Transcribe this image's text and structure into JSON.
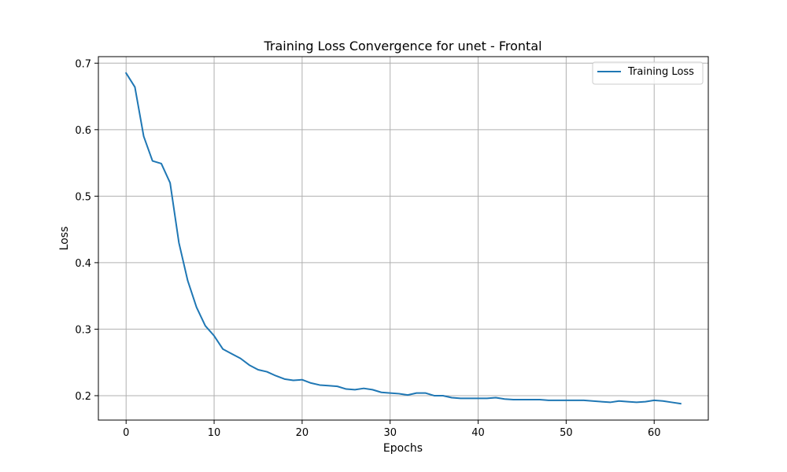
{
  "chart_data": {
    "type": "line",
    "title": "Training Loss Convergence for unet - Frontal",
    "xlabel": "Epochs",
    "ylabel": "Loss",
    "xlim": [
      -3.15,
      66.15
    ],
    "ylim": [
      0.1633,
      0.7098
    ],
    "xticks": [
      0,
      10,
      20,
      30,
      40,
      50,
      60
    ],
    "yticks": [
      0.2,
      0.3,
      0.4,
      0.5,
      0.6,
      0.7
    ],
    "xtick_labels": [
      "0",
      "10",
      "20",
      "30",
      "40",
      "50",
      "60"
    ],
    "ytick_labels": [
      "0.2",
      "0.3",
      "0.4",
      "0.5",
      "0.6",
      "0.7"
    ],
    "grid": true,
    "legend": {
      "position": "top-right"
    },
    "series": [
      {
        "name": "Training Loss",
        "color": "#1f77b4",
        "x": [
          0,
          1,
          2,
          3,
          4,
          5,
          6,
          7,
          8,
          9,
          10,
          11,
          12,
          13,
          14,
          15,
          16,
          17,
          18,
          19,
          20,
          21,
          22,
          23,
          24,
          25,
          26,
          27,
          28,
          29,
          30,
          31,
          32,
          33,
          34,
          35,
          36,
          37,
          38,
          39,
          40,
          41,
          42,
          43,
          44,
          45,
          46,
          47,
          48,
          49,
          50,
          51,
          52,
          53,
          54,
          55,
          56,
          57,
          58,
          59,
          60,
          61,
          62,
          63
        ],
        "y": [
          0.685,
          0.664,
          0.59,
          0.553,
          0.549,
          0.52,
          0.43,
          0.373,
          0.333,
          0.305,
          0.29,
          0.27,
          0.263,
          0.256,
          0.246,
          0.239,
          0.236,
          0.23,
          0.225,
          0.223,
          0.224,
          0.219,
          0.216,
          0.215,
          0.214,
          0.21,
          0.209,
          0.211,
          0.209,
          0.205,
          0.204,
          0.203,
          0.201,
          0.204,
          0.204,
          0.2,
          0.2,
          0.197,
          0.196,
          0.196,
          0.196,
          0.196,
          0.197,
          0.195,
          0.194,
          0.194,
          0.194,
          0.194,
          0.193,
          0.193,
          0.193,
          0.193,
          0.193,
          0.192,
          0.191,
          0.19,
          0.192,
          0.191,
          0.19,
          0.191,
          0.193,
          0.192,
          0.19,
          0.188
        ]
      }
    ]
  }
}
